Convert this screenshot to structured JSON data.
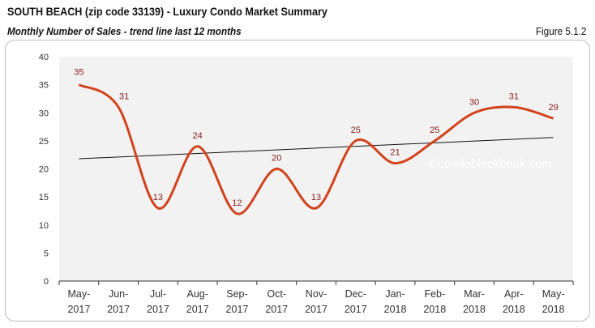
{
  "header": {
    "title": "SOUTH BEACH (zip code 33139) - Luxury Condo Market Summary",
    "subtitle": "Monthly Number of Sales - trend line last 12 months",
    "figure": "Figure 5.1.2"
  },
  "watermark": "©condoblackbook.com",
  "chart_data": {
    "type": "line",
    "categories": [
      "May-2017",
      "Jun-2017",
      "Jul-2017",
      "Aug-2017",
      "Sep-2017",
      "Oct-2017",
      "Nov-2017",
      "Dec-2017",
      "Jan-2018",
      "Feb-2018",
      "Mar-2018",
      "Apr-2018",
      "May-2018"
    ],
    "category_lines": [
      [
        "May-",
        "2017"
      ],
      [
        "Jun-",
        "2017"
      ],
      [
        "Jul-",
        "2017"
      ],
      [
        "Aug-",
        "2017"
      ],
      [
        "Sep-",
        "2017"
      ],
      [
        "Oct-",
        "2017"
      ],
      [
        "Nov-",
        "2017"
      ],
      [
        "Dec-",
        "2017"
      ],
      [
        "Jan-",
        "2018"
      ],
      [
        "Feb-",
        "2018"
      ],
      [
        "Mar-",
        "2018"
      ],
      [
        "Apr-",
        "2018"
      ],
      [
        "May-",
        "2018"
      ]
    ],
    "values": [
      35,
      31,
      13,
      24,
      12,
      20,
      13,
      25,
      21,
      25,
      30,
      31,
      29
    ],
    "trendline": {
      "start": 21.8,
      "end": 25.6
    },
    "ylim": [
      0,
      40
    ],
    "yticks": [
      0,
      5,
      10,
      15,
      20,
      25,
      30,
      35,
      40
    ],
    "smooth": true,
    "grid": false,
    "colors": {
      "line": "#d2421c",
      "trend": "#111111",
      "label": "#8b1a1a",
      "plot_bg": "#f2f2f2"
    }
  }
}
